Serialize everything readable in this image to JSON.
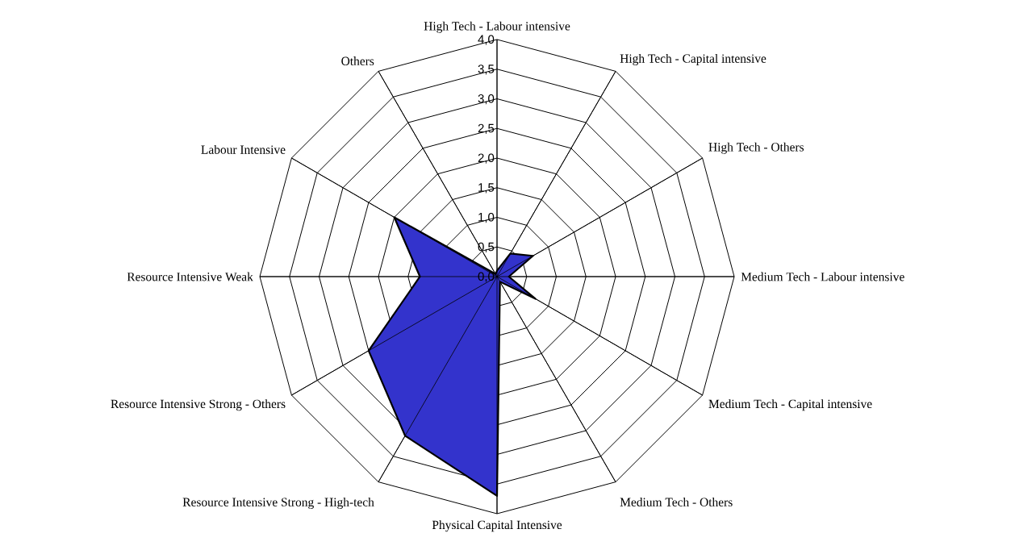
{
  "chart_data": {
    "type": "radar",
    "categories": [
      "High Tech - Labour intensive",
      "High Tech - Capital intensive",
      "High Tech - Others",
      "Medium Tech  - Labour intensive",
      "Medium Tech - Capital intensive",
      "Medium Tech - Others",
      "Physical Capital Intensive",
      "Resource Intensive Strong - High-tech",
      "Resource Intensive Strong - Others",
      "Resource Intensive Weak",
      "Labour Intensive",
      "Others"
    ],
    "series": [
      {
        "color": "#3333cc",
        "values": [
          0.1,
          0.45,
          0.7,
          0.2,
          0.75,
          0.1,
          3.7,
          3.1,
          2.5,
          1.3,
          2.0,
          0.05
        ]
      }
    ],
    "ylim": [
      0,
      4
    ],
    "yticks": [
      {
        "value": 0,
        "label": "0,0"
      },
      {
        "value": 0.5,
        "label": "0,5"
      },
      {
        "value": 1,
        "label": "1,0"
      },
      {
        "value": 1.5,
        "label": "1,5"
      },
      {
        "value": 2,
        "label": "2,0"
      },
      {
        "value": 2.5,
        "label": "2,5"
      },
      {
        "value": 3,
        "label": "3,0"
      },
      {
        "value": 3.5,
        "label": "3,5"
      },
      {
        "value": 4,
        "label": "4,0"
      }
    ],
    "grid": true
  }
}
